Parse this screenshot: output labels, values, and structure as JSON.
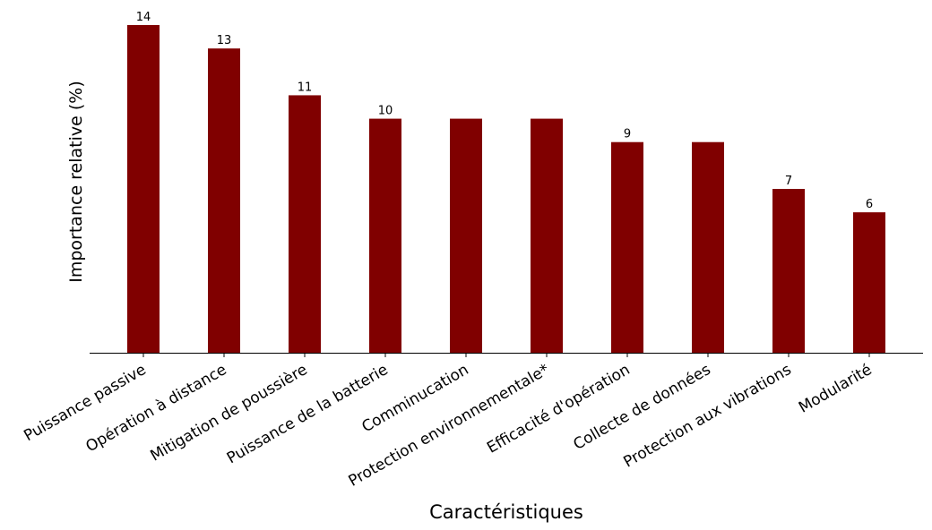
{
  "chart_data": {
    "type": "bar",
    "categories": [
      "Puissance passive",
      "Opération à distance",
      "Mitigation de poussière",
      "Puissance de la batterie",
      "Comminucation",
      "Protection environnementale*",
      "Efficacité d'opération",
      "Collecte de données",
      "Protection aux vibrations",
      "Modularité"
    ],
    "values": [
      14,
      13,
      11,
      10,
      10,
      10,
      9,
      9,
      7,
      6
    ],
    "data_labels": [
      "14",
      "13",
      "11",
      "10",
      "",
      "",
      "9",
      "",
      "7",
      "6"
    ],
    "xlabel": "Caractéristiques",
    "ylabel": "Importance relative (%)",
    "ylim": [
      0,
      14.4
    ],
    "grid": false,
    "bar_color": "#800000"
  }
}
